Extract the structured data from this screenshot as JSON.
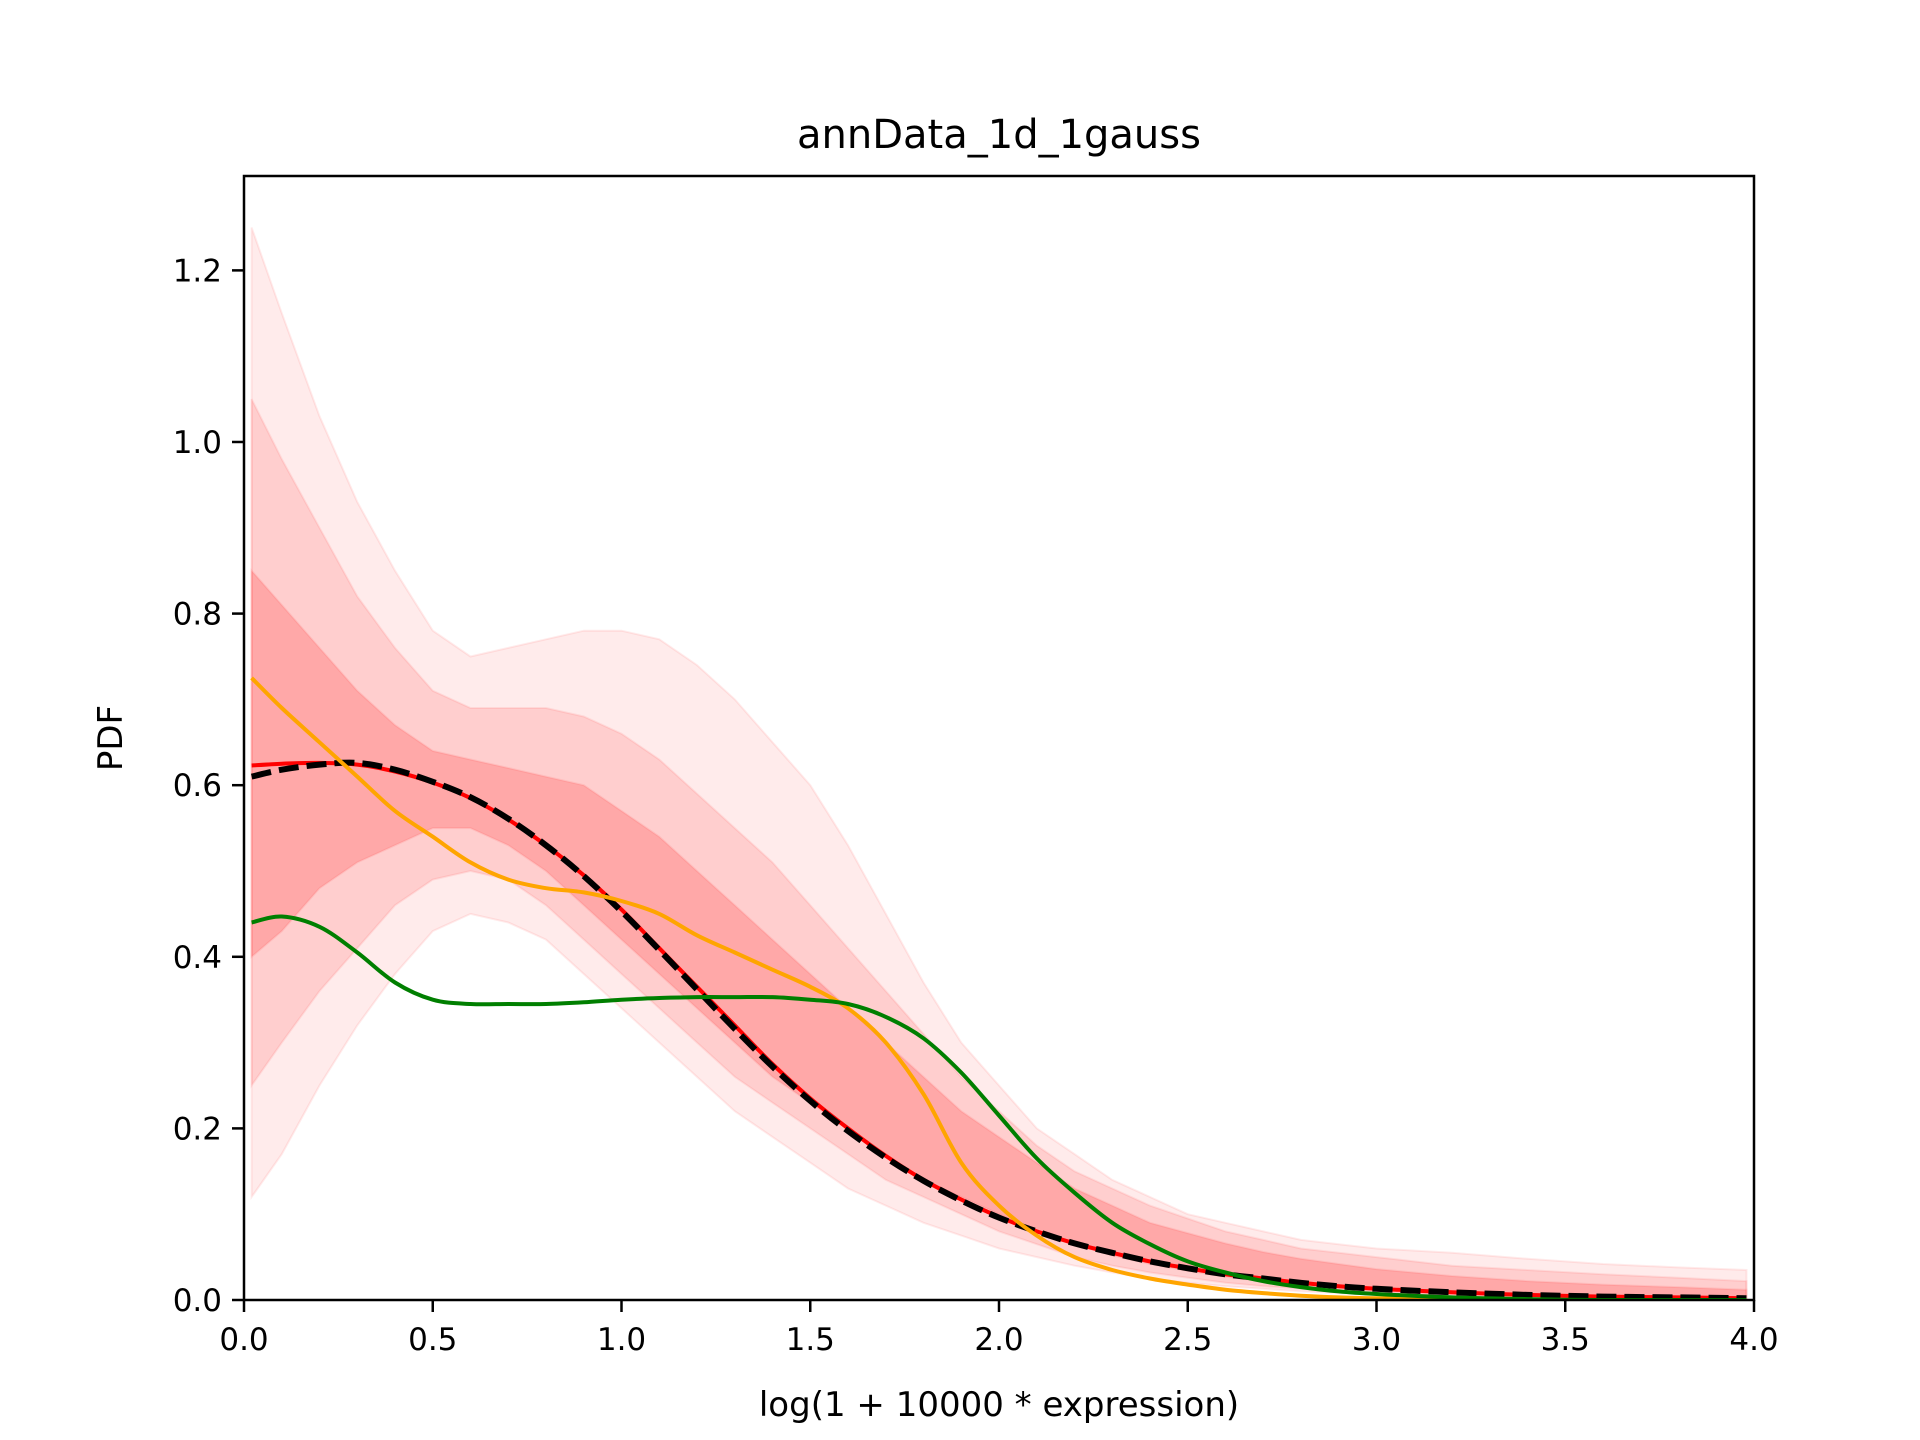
{
  "chart_data": {
    "type": "line",
    "title": "annData_1d_1gauss",
    "xlabel": "log(1 + 10000 * expression)",
    "ylabel": "PDF",
    "xlim": [
      0,
      4
    ],
    "ylim": [
      0,
      1.31
    ],
    "xticks": [
      0,
      0.5,
      1,
      1.5,
      2,
      2.5,
      3,
      3.5,
      4
    ],
    "xtick_labels": [
      "0.0",
      "0.5",
      "1.0",
      "1.5",
      "2.0",
      "2.5",
      "3.0",
      "3.5",
      "4.0"
    ],
    "yticks": [
      0,
      0.2,
      0.4,
      0.6,
      0.8,
      1.0,
      1.2
    ],
    "ytick_labels": [
      "0.0",
      "0.2",
      "0.4",
      "0.6",
      "0.8",
      "1.0",
      "1.2"
    ],
    "grid": false,
    "colors": {
      "band": "#ff0000",
      "red_line": "#ff0000",
      "black_dashed": "#000000",
      "orange": "#ffa500",
      "green": "#007f00"
    },
    "x": [
      0.02,
      0.1,
      0.2,
      0.3,
      0.4,
      0.5,
      0.6,
      0.7,
      0.8,
      0.9,
      1.0,
      1.1,
      1.2,
      1.3,
      1.4,
      1.5,
      1.6,
      1.7,
      1.8,
      1.9,
      2.0,
      2.1,
      2.2,
      2.3,
      2.4,
      2.5,
      2.6,
      2.7,
      2.8,
      2.9,
      3.0,
      3.2,
      3.4,
      3.6,
      3.8,
      3.98
    ],
    "bands": [
      {
        "level": "outer",
        "opacity": 0.08,
        "upper": [
          1.25,
          1.15,
          1.03,
          0.93,
          0.85,
          0.78,
          0.75,
          0.76,
          0.77,
          0.78,
          0.78,
          0.77,
          0.74,
          0.7,
          0.65,
          0.6,
          0.53,
          0.45,
          0.37,
          0.3,
          0.25,
          0.2,
          0.17,
          0.14,
          0.12,
          0.1,
          0.09,
          0.08,
          0.07,
          0.065,
          0.06,
          0.055,
          0.048,
          0.042,
          0.038,
          0.035
        ],
        "lower": [
          0.12,
          0.17,
          0.25,
          0.32,
          0.38,
          0.43,
          0.45,
          0.44,
          0.42,
          0.38,
          0.34,
          0.3,
          0.26,
          0.22,
          0.19,
          0.16,
          0.13,
          0.11,
          0.09,
          0.075,
          0.06,
          0.05,
          0.04,
          0.032,
          0.025,
          0.02,
          0.016,
          0.013,
          0.01,
          0.008,
          0.006,
          0.004,
          0.003,
          0.002,
          0.001,
          0.001
        ]
      },
      {
        "level": "middle",
        "opacity": 0.12,
        "upper": [
          1.05,
          0.98,
          0.9,
          0.82,
          0.76,
          0.71,
          0.69,
          0.69,
          0.69,
          0.68,
          0.66,
          0.63,
          0.59,
          0.55,
          0.51,
          0.46,
          0.41,
          0.36,
          0.31,
          0.26,
          0.22,
          0.18,
          0.15,
          0.13,
          0.11,
          0.095,
          0.08,
          0.07,
          0.06,
          0.055,
          0.05,
          0.04,
          0.035,
          0.03,
          0.026,
          0.022
        ],
        "lower": [
          0.25,
          0.3,
          0.36,
          0.41,
          0.46,
          0.49,
          0.5,
          0.49,
          0.46,
          0.42,
          0.38,
          0.34,
          0.3,
          0.26,
          0.23,
          0.2,
          0.17,
          0.14,
          0.12,
          0.1,
          0.08,
          0.065,
          0.05,
          0.04,
          0.032,
          0.026,
          0.02,
          0.016,
          0.013,
          0.01,
          0.008,
          0.006,
          0.004,
          0.003,
          0.002,
          0.001
        ]
      },
      {
        "level": "inner",
        "opacity": 0.18,
        "upper": [
          0.85,
          0.81,
          0.76,
          0.71,
          0.67,
          0.64,
          0.63,
          0.62,
          0.61,
          0.6,
          0.57,
          0.54,
          0.5,
          0.46,
          0.42,
          0.38,
          0.34,
          0.3,
          0.26,
          0.22,
          0.19,
          0.16,
          0.13,
          0.11,
          0.09,
          0.078,
          0.066,
          0.056,
          0.048,
          0.042,
          0.036,
          0.028,
          0.022,
          0.018,
          0.015,
          0.012
        ],
        "lower": [
          0.4,
          0.43,
          0.48,
          0.51,
          0.53,
          0.55,
          0.55,
          0.53,
          0.5,
          0.46,
          0.42,
          0.38,
          0.34,
          0.3,
          0.26,
          0.23,
          0.2,
          0.17,
          0.14,
          0.12,
          0.1,
          0.08,
          0.065,
          0.052,
          0.042,
          0.034,
          0.027,
          0.022,
          0.018,
          0.014,
          0.011,
          0.007,
          0.005,
          0.003,
          0.002,
          0.001
        ]
      }
    ],
    "series": [
      {
        "color": "#ff0000",
        "style": "solid",
        "values": [
          0.623,
          0.625,
          0.626,
          0.624,
          0.616,
          0.603,
          0.585,
          0.56,
          0.53,
          0.495,
          0.455,
          0.41,
          0.365,
          0.32,
          0.275,
          0.235,
          0.2,
          0.168,
          0.14,
          0.117,
          0.097,
          0.08,
          0.066,
          0.055,
          0.045,
          0.037,
          0.03,
          0.025,
          0.02,
          0.016,
          0.013,
          0.009,
          0.006,
          0.004,
          0.003,
          0.002
        ]
      },
      {
        "color": "#000000",
        "style": "dashed",
        "values": [
          0.61,
          0.618,
          0.624,
          0.626,
          0.618,
          0.604,
          0.586,
          0.561,
          0.53,
          0.494,
          0.453,
          0.408,
          0.362,
          0.316,
          0.272,
          0.232,
          0.197,
          0.166,
          0.139,
          0.116,
          0.096,
          0.08,
          0.066,
          0.055,
          0.045,
          0.037,
          0.03,
          0.025,
          0.02,
          0.016,
          0.013,
          0.009,
          0.006,
          0.004,
          0.003,
          0.002
        ]
      },
      {
        "color": "#ffa500",
        "style": "solid",
        "values": [
          0.725,
          0.69,
          0.65,
          0.61,
          0.57,
          0.54,
          0.51,
          0.49,
          0.48,
          0.475,
          0.465,
          0.45,
          0.425,
          0.405,
          0.385,
          0.365,
          0.34,
          0.3,
          0.24,
          0.16,
          0.11,
          0.075,
          0.05,
          0.035,
          0.025,
          0.018,
          0.012,
          0.008,
          0.005,
          0.003,
          0.002,
          0.001,
          0.0,
          0.0,
          0.0,
          0.0
        ]
      },
      {
        "color": "#007f00",
        "style": "solid",
        "values": [
          0.44,
          0.447,
          0.435,
          0.405,
          0.37,
          0.35,
          0.345,
          0.345,
          0.345,
          0.347,
          0.35,
          0.352,
          0.353,
          0.353,
          0.353,
          0.35,
          0.345,
          0.33,
          0.305,
          0.265,
          0.215,
          0.165,
          0.125,
          0.09,
          0.065,
          0.045,
          0.032,
          0.022,
          0.015,
          0.01,
          0.007,
          0.003,
          0.001,
          0.0,
          0.0,
          0.0
        ]
      }
    ]
  }
}
